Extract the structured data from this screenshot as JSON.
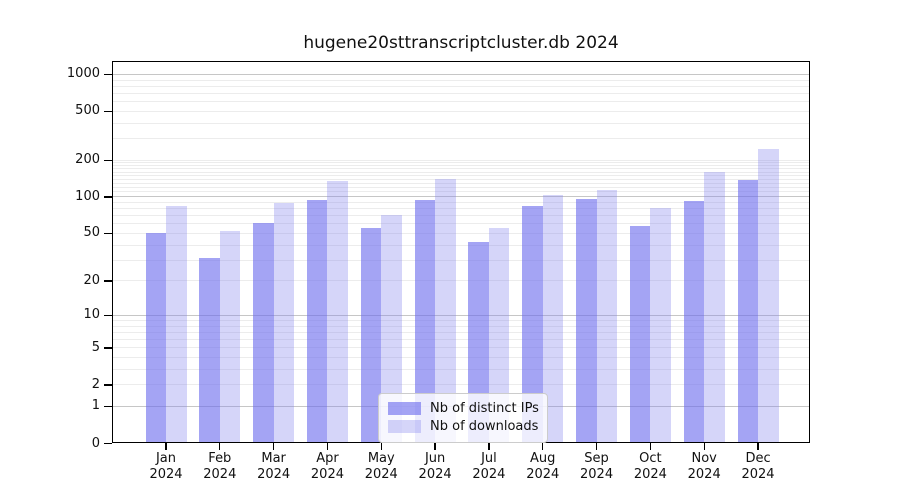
{
  "title": "hugene20sttranscriptcluster.db 2024",
  "chart_data": {
    "type": "bar",
    "title": "hugene20sttranscriptcluster.db 2024",
    "categories": [
      "Jan",
      "Feb",
      "Mar",
      "Apr",
      "May",
      "Jun",
      "Jul",
      "Aug",
      "Sep",
      "Oct",
      "Nov",
      "Dec"
    ],
    "category_year": "2024",
    "series": [
      {
        "name": "Nb of distinct IPs",
        "color": "rgba(108,108,238,0.62)",
        "values": [
          50,
          31,
          61,
          93,
          55,
          94,
          42,
          83,
          96,
          57,
          91,
          136
        ]
      },
      {
        "name": "Nb of downloads",
        "color": "rgba(132,132,238,0.34)",
        "values": [
          84,
          52,
          88,
          134,
          70,
          139,
          55,
          102,
          113,
          80,
          159,
          243
        ]
      }
    ],
    "xlabel": "",
    "ylabel": "",
    "yscale": "log1p",
    "yticks": [
      0,
      1,
      2,
      5,
      10,
      20,
      50,
      100,
      200,
      500,
      1000
    ],
    "ylim": [
      0,
      1250
    ],
    "grid": "on",
    "legend_position": "lower-center-inside"
  },
  "colors": {
    "major_grid": "#c6c6c6",
    "minor_grid": "#ececec",
    "axis": "#000000",
    "text": "#111111"
  }
}
